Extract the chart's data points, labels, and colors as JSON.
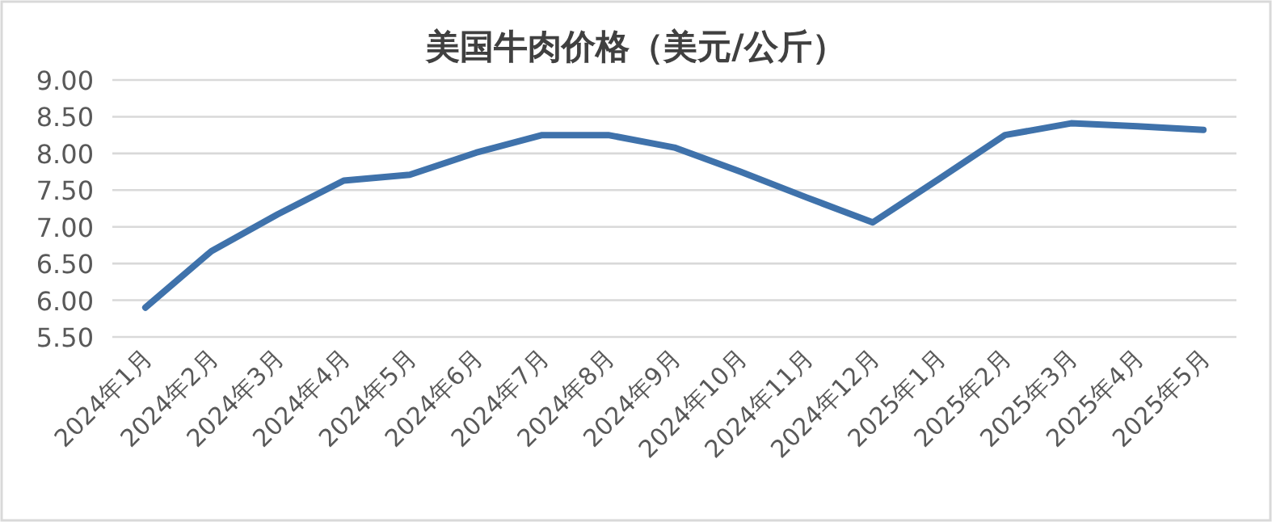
{
  "chart_data": {
    "type": "line",
    "title": "美国牛肉价格（美元/公斤）",
    "categories": [
      "2024年1月",
      "2024年2月",
      "2024年3月",
      "2024年4月",
      "2024年5月",
      "2024年6月",
      "2024年7月",
      "2024年8月",
      "2024年9月",
      "2024年10月",
      "2024年11月",
      "2024年12月",
      "2025年1月",
      "2025年2月",
      "2025年3月",
      "2025年4月",
      "2025年5月"
    ],
    "values": [
      5.9,
      6.67,
      7.17,
      7.63,
      7.71,
      8.01,
      8.25,
      8.25,
      8.08,
      7.75,
      7.4,
      7.06,
      7.65,
      8.25,
      8.41,
      8.37,
      8.32
    ],
    "color": "#3f72ab",
    "ylim": [
      5.5,
      9
    ],
    "yticks": [
      {
        "value": 5.5,
        "label": "5.50"
      },
      {
        "value": 6,
        "label": "6.00"
      },
      {
        "value": 6.5,
        "label": "6.50"
      },
      {
        "value": 7,
        "label": "7.00"
      },
      {
        "value": 7.5,
        "label": "7.50"
      },
      {
        "value": 8,
        "label": "8.00"
      },
      {
        "value": 8.5,
        "label": "8.50"
      },
      {
        "value": 9,
        "label": "9.00"
      }
    ],
    "grid": "y"
  }
}
